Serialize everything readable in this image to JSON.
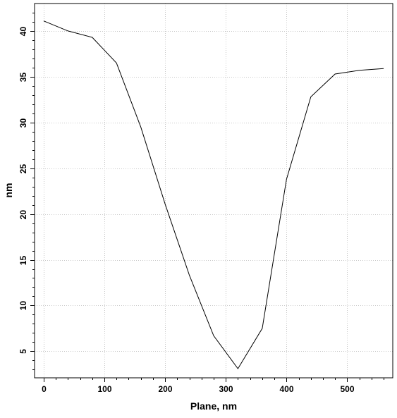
{
  "chart_data": {
    "type": "line",
    "title": "",
    "xlabel": "Plane, nm",
    "ylabel": "nm",
    "xlim": [
      -15,
      575
    ],
    "ylim": [
      2.1,
      43.0
    ],
    "x_ticks": [
      0,
      100,
      200,
      300,
      400,
      500
    ],
    "x_minor_ticks": [
      20,
      40,
      60,
      80,
      120,
      140,
      160,
      180,
      220,
      240,
      260,
      280,
      320,
      340,
      360,
      380,
      420,
      440,
      460,
      480,
      520,
      540,
      560
    ],
    "y_ticks": [
      5,
      10,
      15,
      20,
      25,
      30,
      35,
      40
    ],
    "y_minor_ticks": [
      3,
      4,
      6,
      7,
      8,
      9,
      11,
      12,
      13,
      14,
      16,
      17,
      18,
      19,
      21,
      22,
      23,
      24,
      26,
      27,
      28,
      29,
      31,
      32,
      33,
      34,
      36,
      37,
      38,
      39,
      41,
      42
    ],
    "grid": true,
    "series": [
      {
        "x": [
          0,
          40,
          80,
          100,
          120,
          160,
          200,
          240,
          280,
          320,
          360,
          400,
          440,
          480,
          520,
          560
        ],
        "y": [
          41.1,
          40.0,
          39.3,
          37.9,
          36.5,
          29.5,
          21.1,
          13.3,
          6.7,
          3.1,
          7.5,
          23.8,
          32.8,
          35.3,
          35.7,
          35.9
        ]
      }
    ],
    "colors": {
      "line": "#000000",
      "grid": "#c8c8c8",
      "frame": "#000000"
    }
  }
}
